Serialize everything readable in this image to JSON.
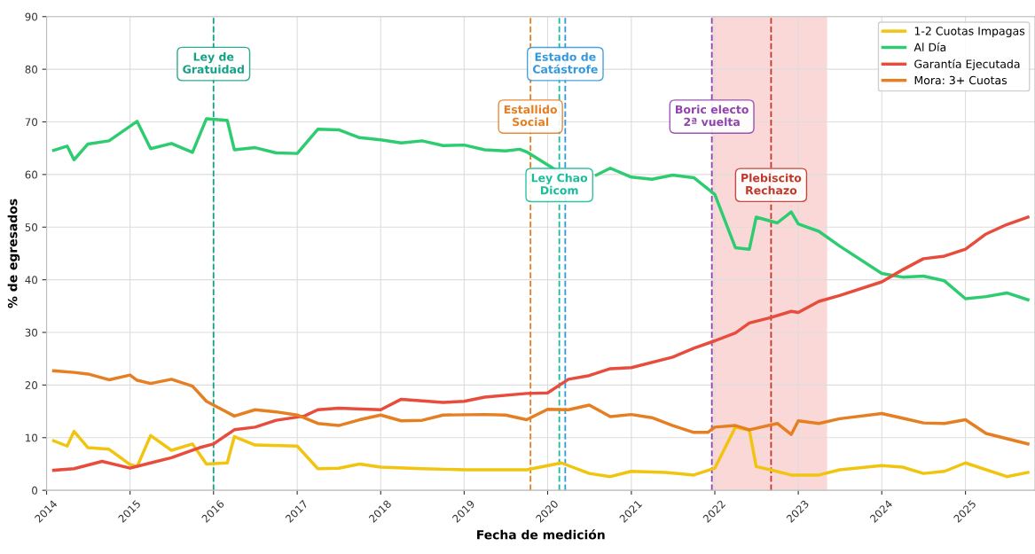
{
  "chart_data": {
    "type": "line",
    "xlabel": "Fecha de medición",
    "ylabel": "% de egresados",
    "xlim": [
      "2014-01-01",
      "2025-11-01"
    ],
    "ylim": [
      0,
      90
    ],
    "yticks": [
      0,
      10,
      20,
      30,
      40,
      50,
      60,
      70,
      80,
      90
    ],
    "xticks": [
      {
        "value": "2014-01-01",
        "label": "2014"
      },
      {
        "value": "2015-01-01",
        "label": "2015"
      },
      {
        "value": "2016-01-01",
        "label": "2016"
      },
      {
        "value": "2017-01-01",
        "label": "2017"
      },
      {
        "value": "2018-01-01",
        "label": "2018"
      },
      {
        "value": "2019-01-01",
        "label": "2019"
      },
      {
        "value": "2020-01-01",
        "label": "2020"
      },
      {
        "value": "2021-01-01",
        "label": "2021"
      },
      {
        "value": "2022-01-01",
        "label": "2022"
      },
      {
        "value": "2023-01-01",
        "label": "2023"
      },
      {
        "value": "2024-01-01",
        "label": "2024"
      },
      {
        "value": "2025-01-01",
        "label": "2025"
      }
    ],
    "grid": true,
    "legend": "top right",
    "marker": "none",
    "line_style": "solid",
    "series": [
      {
        "name": "1-2 Cuotas Impagas",
        "color": "#f1c40f",
        "x": [
          "2014-02",
          "2014-04",
          "2014-05",
          "2014-07",
          "2014-10",
          "2015-01",
          "2015-02",
          "2015-04",
          "2015-07",
          "2015-10",
          "2015-12",
          "2016-03",
          "2016-04",
          "2016-07",
          "2017-01",
          "2017-04",
          "2017-07",
          "2017-10",
          "2018-01",
          "2018-07",
          "2019-01",
          "2019-10",
          "2020-03",
          "2020-07",
          "2020-10",
          "2021-01",
          "2021-06",
          "2021-10",
          "2022-01",
          "2022-04",
          "2022-06",
          "2022-07",
          "2022-09",
          "2022-12",
          "2023-04",
          "2023-07",
          "2024-01",
          "2024-04",
          "2024-07",
          "2024-10",
          "2025-01",
          "2025-07",
          "2025-10"
        ],
        "values": [
          9.4,
          8.4,
          11.2,
          8.1,
          7.8,
          4.9,
          4.5,
          10.4,
          7.6,
          8.8,
          5.0,
          5.2,
          10.2,
          8.6,
          8.4,
          4.1,
          4.2,
          5.0,
          4.4,
          4.1,
          3.9,
          3.9,
          5.2,
          3.2,
          2.6,
          3.6,
          3.4,
          2.9,
          4.2,
          12.0,
          11.4,
          4.5,
          3.9,
          2.9,
          2.9,
          3.9,
          4.7,
          4.4,
          3.2,
          3.6,
          5.2,
          2.6,
          3.4
        ]
      },
      {
        "name": "Al Día",
        "color": "#2ecc71",
        "x": [
          "2014-02",
          "2014-04",
          "2014-05",
          "2014-07",
          "2014-10",
          "2015-02",
          "2015-04",
          "2015-07",
          "2015-10",
          "2015-12",
          "2016-03",
          "2016-04",
          "2016-07",
          "2016-10",
          "2017-01",
          "2017-04",
          "2017-07",
          "2017-10",
          "2018-01",
          "2018-04",
          "2018-07",
          "2018-10",
          "2019-01",
          "2019-04",
          "2019-07",
          "2019-09",
          "2019-10",
          "2020-02",
          "2020-04",
          "2020-08",
          "2020-10",
          "2021-01",
          "2021-04",
          "2021-07",
          "2021-10",
          "2022-01",
          "2022-04",
          "2022-06",
          "2022-07",
          "2022-10",
          "2022-12",
          "2023-01",
          "2023-04",
          "2023-07",
          "2024-01",
          "2024-04",
          "2024-07",
          "2024-10",
          "2025-01",
          "2025-04",
          "2025-07",
          "2025-10"
        ],
        "values": [
          64.6,
          65.4,
          62.8,
          65.8,
          66.4,
          70.1,
          64.9,
          65.9,
          64.2,
          70.6,
          70.3,
          64.7,
          65.1,
          64.1,
          64.0,
          68.6,
          68.5,
          67.0,
          66.6,
          66.0,
          66.4,
          65.5,
          65.6,
          64.7,
          64.5,
          64.8,
          64.3,
          61.0,
          null,
          59.9,
          61.2,
          59.5,
          59.1,
          59.9,
          59.4,
          56.2,
          46.1,
          45.8,
          51.9,
          50.8,
          52.9,
          50.6,
          49.2,
          46.4,
          41.2,
          40.5,
          40.7,
          39.8,
          36.4,
          36.8,
          37.5,
          36.2
        ]
      },
      {
        "name": "Garantía Ejecutada",
        "color": "#e74c3c",
        "x": [
          "2014-02",
          "2014-05",
          "2014-09",
          "2015-01",
          "2015-04",
          "2015-07",
          "2015-11",
          "2016-01",
          "2016-04",
          "2016-07",
          "2016-10",
          "2017-02",
          "2017-04",
          "2017-07",
          "2018-01",
          "2018-04",
          "2018-10",
          "2019-01",
          "2019-04",
          "2019-10",
          "2020-01",
          "2020-04",
          "2020-07",
          "2020-10",
          "2021-01",
          "2021-07",
          "2021-10",
          "2022-01",
          "2022-04",
          "2022-06",
          "2022-09",
          "2022-12",
          "2023-01",
          "2023-04",
          "2023-07",
          "2024-01",
          "2024-04",
          "2024-07",
          "2024-10",
          "2025-01",
          "2025-04",
          "2025-07",
          "2025-10"
        ],
        "values": [
          3.8,
          4.1,
          5.5,
          4.2,
          5.2,
          6.2,
          8.1,
          8.8,
          11.5,
          12.0,
          13.3,
          14.1,
          15.3,
          15.6,
          15.3,
          17.3,
          16.7,
          16.9,
          17.7,
          18.4,
          18.5,
          21.1,
          21.8,
          23.1,
          23.3,
          25.3,
          27.0,
          28.4,
          29.9,
          31.8,
          32.8,
          34.0,
          33.8,
          35.9,
          37.0,
          39.6,
          41.9,
          44.0,
          44.5,
          45.8,
          48.7,
          50.5,
          51.9
        ]
      },
      {
        "name": "Mora: 3+ Cuotas",
        "color": "#e67e22",
        "x": [
          "2014-02",
          "2014-05",
          "2014-07",
          "2014-10",
          "2015-01",
          "2015-02",
          "2015-04",
          "2015-07",
          "2015-10",
          "2015-12",
          "2016-01",
          "2016-04",
          "2016-07",
          "2016-10",
          "2017-01",
          "2017-04",
          "2017-07",
          "2017-10",
          "2018-01",
          "2018-04",
          "2018-07",
          "2018-10",
          "2019-04",
          "2019-07",
          "2019-10",
          "2020-01",
          "2020-04",
          "2020-07",
          "2020-10",
          "2021-01",
          "2021-04",
          "2021-07",
          "2021-10",
          "2021-12",
          "2022-01",
          "2022-04",
          "2022-06",
          "2022-10",
          "2022-12",
          "2023-01",
          "2023-04",
          "2023-07",
          "2024-01",
          "2024-07",
          "2024-10",
          "2025-01",
          "2025-04",
          "2025-10"
        ],
        "values": [
          22.7,
          22.4,
          22.1,
          21.0,
          21.9,
          20.9,
          20.3,
          21.1,
          19.8,
          16.9,
          16.2,
          14.1,
          15.3,
          14.9,
          14.3,
          12.7,
          12.3,
          13.4,
          14.3,
          13.2,
          13.3,
          14.3,
          14.4,
          14.3,
          13.4,
          15.4,
          15.3,
          16.2,
          14.0,
          14.4,
          13.8,
          12.3,
          11.0,
          11.0,
          12.0,
          12.3,
          11.5,
          12.7,
          10.6,
          13.2,
          12.7,
          13.6,
          14.6,
          12.8,
          12.7,
          13.4,
          10.8,
          8.8
        ]
      }
    ],
    "ref_lines": [
      {
        "axis": "x",
        "value": "2016-01-01",
        "label": "Ley de\nGratuidad",
        "color": "#16a085",
        "line_style": "dashed"
      },
      {
        "axis": "x",
        "value": "2019-10-18",
        "label": "Estallido\nSocial",
        "color": "#e67e22",
        "line_style": "dashed"
      },
      {
        "axis": "x",
        "value": "2020-03-18",
        "label": "Estado de\nCatástrofe",
        "color": "#3498db",
        "line_style": "dashed"
      },
      {
        "axis": "x",
        "value": "2020-02-21",
        "label": "Ley Chao\nDicom",
        "color": "#1abc9c",
        "line_style": "dashed"
      },
      {
        "axis": "x",
        "value": "2021-12-19",
        "label": "Boric electo\n2ª vuelta",
        "color": "#8e44ad",
        "line_style": "dashed"
      },
      {
        "axis": "x",
        "value": "2022-09-04",
        "label": "Plebiscito\nRechazo",
        "color": "#c0392b",
        "line_style": "dashed"
      }
    ],
    "bands": [
      {
        "axis": "x",
        "from": "2021-12-19",
        "to": "2023-05-07",
        "color": "#f5a9a9"
      }
    ]
  }
}
